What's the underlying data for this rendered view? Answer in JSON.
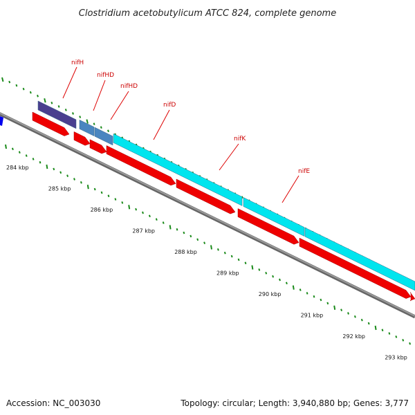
{
  "title": "Clostridium acetobutylicum ATCC 824, complete genome",
  "footer": {
    "accession": "Accession: NC_003030",
    "stats": "Topology: circular; Length: 3,940,880 bp; Genes: 3,777"
  },
  "colors": {
    "backbone": "#8c8c8c",
    "backbone_edge": "#666666",
    "cds_red": "#ee0000",
    "nifH_feature": "#4a3f8f",
    "nifHD_feature": "#4a86c0",
    "nif_feature_cyan": "#00e5ee",
    "gene_label": "#cc0000",
    "leader_line": "#dd0000",
    "ticks": "#1a8a1a",
    "partial_blue": "#0000ee"
  },
  "ticks": [
    "284 kbp",
    "285 kbp",
    "286 kbp",
    "287 kbp",
    "288 kbp",
    "289 kbp",
    "290 kbp",
    "291 kbp",
    "292 kbp",
    "293 kbp"
  ],
  "genes": [
    {
      "name": "nifH"
    },
    {
      "name": "nifHD"
    },
    {
      "name": "nifHD"
    },
    {
      "name": "nifD"
    },
    {
      "name": "nifK"
    },
    {
      "name": "nifE"
    }
  ]
}
